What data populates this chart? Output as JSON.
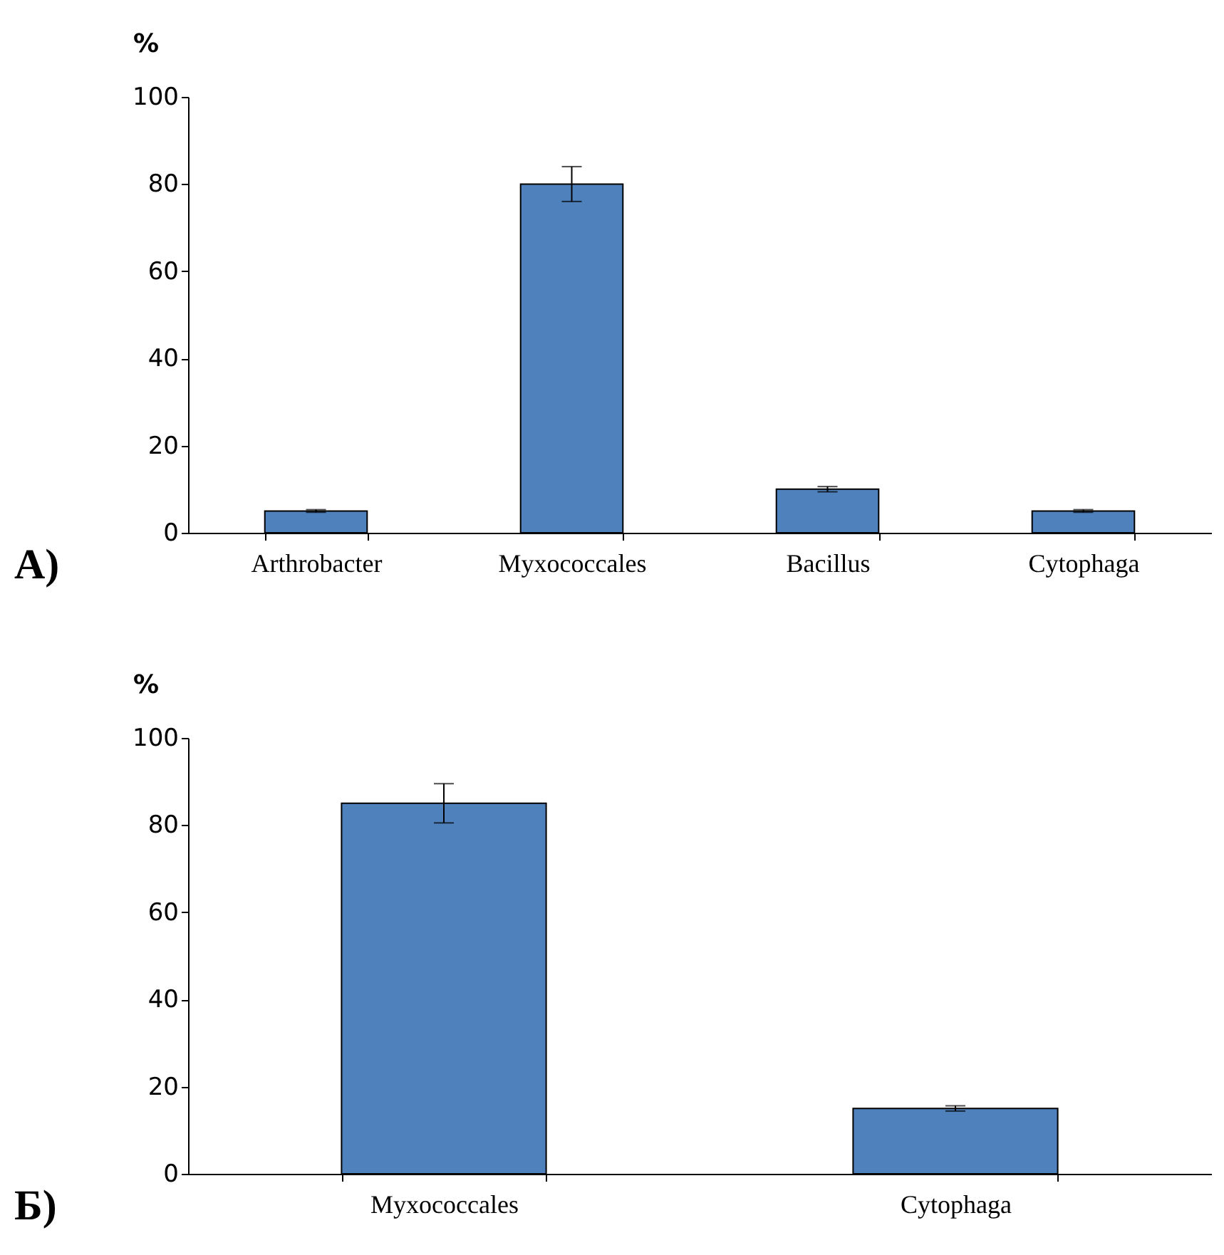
{
  "chart_data": [
    {
      "type": "bar",
      "ylabel": "%",
      "annotations": [
        "А)"
      ],
      "categories": [
        "Arthrobacter",
        "Myxococcales",
        "Bacillus",
        "Cytophaga"
      ],
      "values": [
        5,
        80,
        10,
        5
      ],
      "errors": [
        0.3,
        4,
        0.6,
        0.3
      ],
      "color": "#4f81bd",
      "ylim": [
        0,
        100
      ],
      "yticks": [
        0,
        20,
        40,
        60,
        80,
        100
      ],
      "grid": false,
      "legend": false
    },
    {
      "type": "bar",
      "ylabel": "%",
      "annotations": [
        "Б)"
      ],
      "categories": [
        "Myxococcales",
        "Cytophaga"
      ],
      "values": [
        85,
        15
      ],
      "errors": [
        4.5,
        0.6
      ],
      "color": "#4f81bd",
      "ylim": [
        0,
        100
      ],
      "yticks": [
        0,
        20,
        40,
        60,
        80,
        100
      ],
      "grid": false,
      "legend": false
    }
  ]
}
